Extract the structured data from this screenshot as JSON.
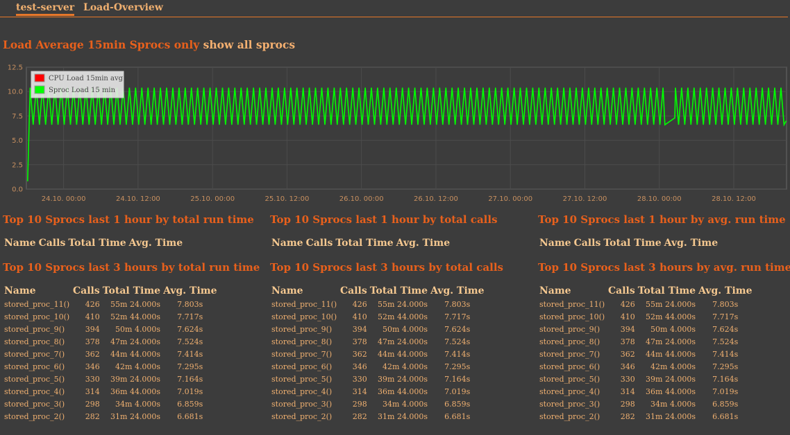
{
  "tabs": [
    {
      "label": "test-server",
      "active": true
    },
    {
      "label": "Load-Overview",
      "active": false
    }
  ],
  "page_title": {
    "main": "Load Average 15min Sprocs only",
    "link": "show all sprocs"
  },
  "colors": {
    "background": "#3c3c3c",
    "accent": "#e8782a",
    "title": "#e8601c",
    "text": "#f0b070",
    "cpu_series": "#ff0000",
    "sproc_series": "#00ff00"
  },
  "chart_data": {
    "type": "line",
    "title": "",
    "xlabel": "",
    "ylabel": "",
    "ylim": [
      0,
      12.5
    ],
    "y_ticks": [
      "0.0",
      "2.5",
      "5.0",
      "7.5",
      "10.0",
      "12.5"
    ],
    "x_ticks": [
      "24.10. 00:00",
      "24.10. 12:00",
      "25.10. 00:00",
      "25.10. 12:00",
      "26.10. 00:00",
      "26.10. 12:00",
      "27.10. 00:00",
      "27.10. 12:00",
      "28.10. 00:00",
      "28.10. 12:00"
    ],
    "x_range_hours": [
      -6,
      116.5
    ],
    "grid": true,
    "legend_position": "top-left",
    "series": [
      {
        "name": "CPU Load 15min avg",
        "color": "#ff0000",
        "values": []
      },
      {
        "name": "Sproc Load 15 min",
        "color": "#00ff00",
        "pattern": {
          "start_hour": -5.8,
          "start_value": 0.8,
          "oscillation_min": 6.6,
          "oscillation_max": 10.4,
          "period_hours": 1.0,
          "gap_from_hour": 96.8,
          "gap_to_hour": 98.6,
          "gap_values": [
            6.6,
            7.3
          ]
        }
      }
    ]
  },
  "sections": [
    {
      "title": "Top 10 Sprocs last 1 hour by total run time",
      "headers": [
        "Name",
        "Calls",
        "Total Time",
        "Avg. Time"
      ],
      "rows": []
    },
    {
      "title": "Top 10 Sprocs last 1 hour by total calls",
      "headers": [
        "Name",
        "Calls",
        "Total Time",
        "Avg. Time"
      ],
      "rows": []
    },
    {
      "title": "Top 10 Sprocs last 1 hour by avg. run time",
      "headers": [
        "Name",
        "Calls",
        "Total Time",
        "Avg. Time"
      ],
      "rows": []
    },
    {
      "title": "Top 10 Sprocs last 3 hours by total run time",
      "headers": [
        "Name",
        "Calls",
        "Total Time",
        "Avg. Time"
      ],
      "rows": [
        [
          "stored_proc_11()",
          "426",
          "55m 24.000s",
          "7.803s"
        ],
        [
          "stored_proc_10()",
          "410",
          "52m 44.000s",
          "7.717s"
        ],
        [
          "stored_proc_9()",
          "394",
          "50m 4.000s",
          "7.624s"
        ],
        [
          "stored_proc_8()",
          "378",
          "47m 24.000s",
          "7.524s"
        ],
        [
          "stored_proc_7()",
          "362",
          "44m 44.000s",
          "7.414s"
        ],
        [
          "stored_proc_6()",
          "346",
          "42m 4.000s",
          "7.295s"
        ],
        [
          "stored_proc_5()",
          "330",
          "39m 24.000s",
          "7.164s"
        ],
        [
          "stored_proc_4()",
          "314",
          "36m 44.000s",
          "7.019s"
        ],
        [
          "stored_proc_3()",
          "298",
          "34m 4.000s",
          "6.859s"
        ],
        [
          "stored_proc_2()",
          "282",
          "31m 24.000s",
          "6.681s"
        ]
      ]
    },
    {
      "title": "Top 10 Sprocs last 3 hours by total calls",
      "headers": [
        "Name",
        "Calls",
        "Total Time",
        "Avg. Time"
      ],
      "rows": [
        [
          "stored_proc_11()",
          "426",
          "55m 24.000s",
          "7.803s"
        ],
        [
          "stored_proc_10()",
          "410",
          "52m 44.000s",
          "7.717s"
        ],
        [
          "stored_proc_9()",
          "394",
          "50m 4.000s",
          "7.624s"
        ],
        [
          "stored_proc_8()",
          "378",
          "47m 24.000s",
          "7.524s"
        ],
        [
          "stored_proc_7()",
          "362",
          "44m 44.000s",
          "7.414s"
        ],
        [
          "stored_proc_6()",
          "346",
          "42m 4.000s",
          "7.295s"
        ],
        [
          "stored_proc_5()",
          "330",
          "39m 24.000s",
          "7.164s"
        ],
        [
          "stored_proc_4()",
          "314",
          "36m 44.000s",
          "7.019s"
        ],
        [
          "stored_proc_3()",
          "298",
          "34m 4.000s",
          "6.859s"
        ],
        [
          "stored_proc_2()",
          "282",
          "31m 24.000s",
          "6.681s"
        ]
      ]
    },
    {
      "title": "Top 10 Sprocs last 3 hours by avg. run time",
      "headers": [
        "Name",
        "Calls",
        "Total Time",
        "Avg. Time"
      ],
      "rows": [
        [
          "stored_proc_11()",
          "426",
          "55m 24.000s",
          "7.803s"
        ],
        [
          "stored_proc_10()",
          "410",
          "52m 44.000s",
          "7.717s"
        ],
        [
          "stored_proc_9()",
          "394",
          "50m 4.000s",
          "7.624s"
        ],
        [
          "stored_proc_8()",
          "378",
          "47m 24.000s",
          "7.524s"
        ],
        [
          "stored_proc_7()",
          "362",
          "44m 44.000s",
          "7.414s"
        ],
        [
          "stored_proc_6()",
          "346",
          "42m 4.000s",
          "7.295s"
        ],
        [
          "stored_proc_5()",
          "330",
          "39m 24.000s",
          "7.164s"
        ],
        [
          "stored_proc_4()",
          "314",
          "36m 44.000s",
          "7.019s"
        ],
        [
          "stored_proc_3()",
          "298",
          "34m 4.000s",
          "6.859s"
        ],
        [
          "stored_proc_2()",
          "282",
          "31m 24.000s",
          "6.681s"
        ]
      ]
    }
  ]
}
